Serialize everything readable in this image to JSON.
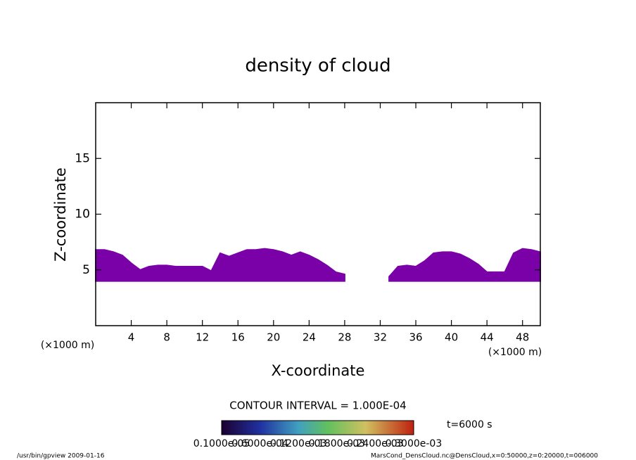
{
  "chart_data": {
    "type": "contour",
    "title": "density of cloud",
    "x_label": "X-coordinate",
    "y_label": "Z-coordinate",
    "x_unit": "(×1000 m)",
    "y_unit": "(×1000 m)",
    "xlim": [
      0,
      50
    ],
    "ylim": [
      0,
      20
    ],
    "xticks": [
      4,
      8,
      12,
      16,
      20,
      24,
      28,
      32,
      36,
      40,
      44,
      48
    ],
    "yticks": [
      5,
      10,
      15
    ],
    "color": "#7a00a8",
    "x": [
      0,
      1,
      2,
      3,
      4,
      5,
      6,
      7,
      8,
      9,
      10,
      11,
      12,
      13,
      14,
      15,
      16,
      17,
      18,
      19,
      20,
      21,
      22,
      23,
      24,
      25,
      26,
      27,
      28,
      29,
      30,
      31,
      32,
      33,
      34,
      35,
      36,
      37,
      38,
      39,
      40,
      41,
      42,
      43,
      44,
      45,
      46,
      47,
      48,
      49,
      50
    ],
    "cloud_top": [
      6.8,
      6.8,
      6.6,
      6.3,
      5.6,
      5.0,
      5.3,
      5.4,
      5.4,
      5.3,
      5.3,
      5.3,
      5.3,
      4.9,
      6.5,
      6.2,
      6.5,
      6.8,
      6.8,
      6.9,
      6.8,
      6.6,
      6.3,
      6.6,
      6.3,
      5.9,
      5.4,
      4.8,
      4.6,
      null,
      null,
      null,
      null,
      4.4,
      5.3,
      5.4,
      5.3,
      5.8,
      6.5,
      6.6,
      6.6,
      6.4,
      6.0,
      5.5,
      4.8,
      4.8,
      4.8,
      6.5,
      6.9,
      6.8,
      6.6
    ],
    "cloud_base": [
      4.0,
      4.0,
      4.0,
      4.0,
      4.0,
      4.0,
      4.0,
      4.0,
      4.0,
      4.0,
      4.0,
      4.0,
      4.0,
      4.0,
      4.0,
      4.0,
      4.0,
      4.0,
      4.0,
      4.0,
      4.0,
      4.0,
      4.0,
      4.0,
      4.0,
      4.0,
      4.0,
      4.0,
      4.0,
      null,
      null,
      null,
      null,
      4.0,
      4.0,
      4.0,
      4.0,
      4.0,
      4.0,
      4.0,
      4.0,
      4.0,
      4.0,
      4.0,
      4.0,
      4.0,
      4.0,
      4.0,
      4.0,
      4.0,
      4.0
    ],
    "contour_interval": "CONTOUR INTERVAL = 1.000E-04",
    "time_label": "t=6000 s",
    "colorbar_labels": [
      "0.1000e-05",
      "0.6000e-04",
      "0.1200e-03",
      "0.1800e-03",
      "0.2400e-03",
      "0.3000e-03"
    ],
    "footer_left": "/usr/bin/gpview  2009-01-16",
    "footer_right": "MarsCond_DensCloud.nc@DensCloud,x=0:50000,z=0:20000,t=006000"
  }
}
